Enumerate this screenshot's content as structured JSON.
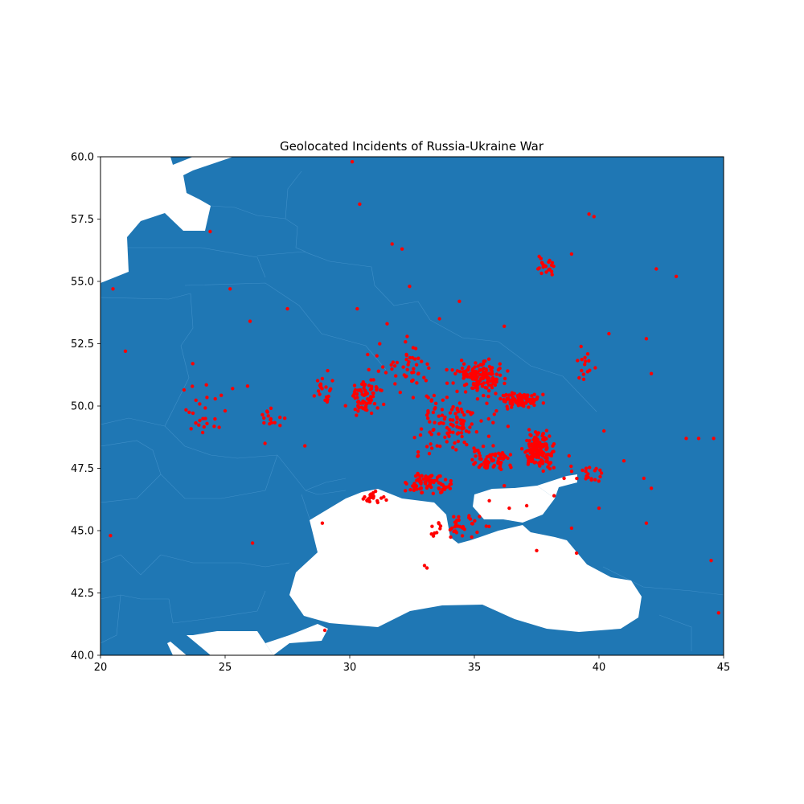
{
  "chart_data": {
    "type": "scatter",
    "title": "Geolocated Incidents of Russia-Ukraine War",
    "xlabel": "",
    "ylabel": "",
    "xlim": [
      20,
      45
    ],
    "ylim": [
      40,
      60
    ],
    "x_ticks": [
      "20",
      "25",
      "30",
      "35",
      "40",
      "45"
    ],
    "y_ticks": [
      "40.0",
      "42.5",
      "45.0",
      "47.5",
      "50.0",
      "52.5",
      "55.0",
      "57.5",
      "60.0"
    ],
    "grid": false,
    "legend": "none",
    "colors": {
      "land": "#1f77b4",
      "sea": "#ffffff",
      "points": "#ff0000",
      "borders": "#3a8ac4"
    },
    "background_map": "country polygons of Eastern Europe, Black Sea and Baltic Sea in white",
    "series": [
      {
        "marker": "circle",
        "clusters": [
          {
            "center": [
              35.2,
              51.2
            ],
            "spread": [
              0.9,
              0.5
            ],
            "count": 140
          },
          {
            "center": [
              37.6,
              48.2
            ],
            "spread": [
              0.5,
              0.6
            ],
            "count": 150
          },
          {
            "center": [
              36.8,
              50.2
            ],
            "spread": [
              0.7,
              0.3
            ],
            "count": 90
          },
          {
            "center": [
              30.6,
              50.4
            ],
            "spread": [
              0.6,
              0.6
            ],
            "count": 70
          },
          {
            "center": [
              33.2,
              46.9
            ],
            "spread": [
              0.7,
              0.4
            ],
            "count": 80
          },
          {
            "center": [
              35.8,
              47.8
            ],
            "spread": [
              0.8,
              0.4
            ],
            "count": 60
          },
          {
            "center": [
              34.2,
              49.3
            ],
            "spread": [
              1.5,
              1.2
            ],
            "count": 120
          },
          {
            "center": [
              32.2,
              51.5
            ],
            "spread": [
              1.4,
              0.8
            ],
            "count": 50
          },
          {
            "center": [
              30.9,
              46.3
            ],
            "spread": [
              0.5,
              0.3
            ],
            "count": 25
          },
          {
            "center": [
              34.5,
              45.2
            ],
            "spread": [
              1.0,
              0.4
            ],
            "count": 40
          },
          {
            "center": [
              24.2,
              49.8
            ],
            "spread": [
              0.7,
              0.9
            ],
            "count": 25
          },
          {
            "center": [
              27.0,
              49.6
            ],
            "spread": [
              0.5,
              0.4
            ],
            "count": 15
          },
          {
            "center": [
              37.8,
              55.6
            ],
            "spread": [
              0.4,
              0.3
            ],
            "count": 20
          },
          {
            "center": [
              39.7,
              47.3
            ],
            "spread": [
              0.6,
              0.3
            ],
            "count": 20
          },
          {
            "center": [
              39.4,
              51.5
            ],
            "spread": [
              0.6,
              0.8
            ],
            "count": 15
          },
          {
            "center": [
              28.9,
              50.6
            ],
            "spread": [
              0.4,
              0.6
            ],
            "count": 20
          }
        ],
        "points": [
          [
            30.1,
            59.8
          ],
          [
            30.4,
            58.1
          ],
          [
            24.4,
            57.0
          ],
          [
            31.7,
            56.5
          ],
          [
            32.1,
            56.3
          ],
          [
            20.5,
            54.7
          ],
          [
            25.2,
            54.7
          ],
          [
            27.5,
            53.9
          ],
          [
            26.0,
            53.4
          ],
          [
            21.0,
            52.2
          ],
          [
            37.6,
            56.0
          ],
          [
            39.6,
            57.7
          ],
          [
            39.8,
            57.6
          ],
          [
            38.9,
            56.1
          ],
          [
            42.3,
            55.5
          ],
          [
            43.1,
            55.2
          ],
          [
            40.4,
            52.9
          ],
          [
            41.9,
            52.7
          ],
          [
            42.1,
            51.3
          ],
          [
            43.5,
            48.7
          ],
          [
            44.0,
            48.7
          ],
          [
            44.6,
            48.7
          ],
          [
            41.8,
            47.1
          ],
          [
            42.1,
            46.7
          ],
          [
            41.9,
            45.3
          ],
          [
            44.5,
            43.8
          ],
          [
            44.8,
            41.7
          ],
          [
            26.1,
            44.5
          ],
          [
            20.4,
            44.8
          ],
          [
            28.9,
            45.3
          ],
          [
            29.0,
            41.0
          ],
          [
            33.0,
            43.6
          ],
          [
            33.1,
            43.5
          ],
          [
            37.5,
            44.2
          ],
          [
            39.1,
            44.1
          ],
          [
            40.0,
            45.9
          ],
          [
            38.9,
            45.1
          ],
          [
            38.8,
            48.0
          ],
          [
            40.2,
            49.0
          ],
          [
            41.0,
            47.8
          ],
          [
            36.2,
            53.2
          ],
          [
            34.4,
            54.2
          ],
          [
            33.6,
            53.5
          ],
          [
            32.4,
            54.8
          ],
          [
            31.5,
            53.3
          ],
          [
            30.3,
            53.9
          ],
          [
            28.9,
            51.1
          ],
          [
            25.9,
            50.8
          ],
          [
            25.3,
            50.7
          ],
          [
            23.7,
            51.7
          ],
          [
            26.6,
            48.5
          ],
          [
            28.2,
            48.4
          ],
          [
            36.4,
            45.9
          ],
          [
            37.1,
            46.0
          ],
          [
            38.2,
            46.4
          ],
          [
            33.4,
            44.9
          ],
          [
            34.1,
            45.1
          ],
          [
            35.6,
            46.2
          ],
          [
            36.2,
            46.8
          ],
          [
            38.6,
            47.1
          ]
        ]
      }
    ]
  }
}
